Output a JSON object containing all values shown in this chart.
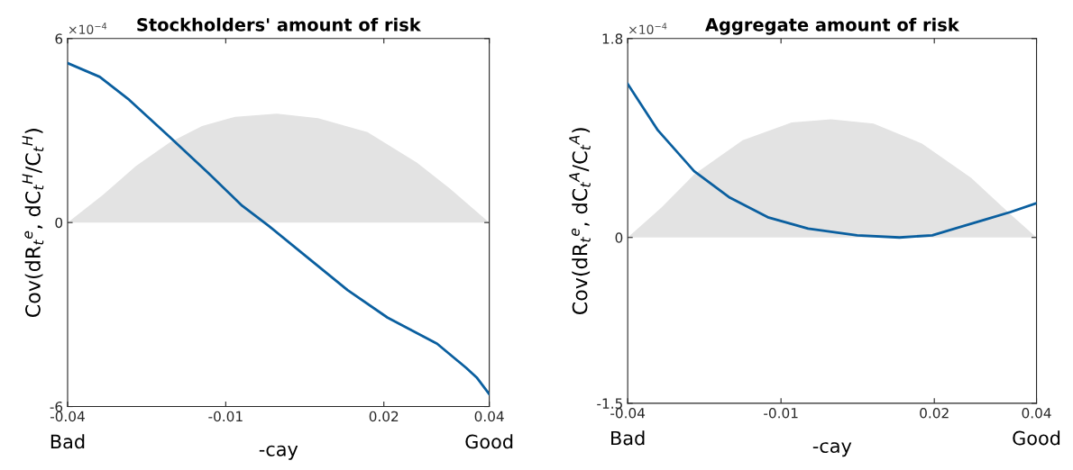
{
  "chart_data": [
    {
      "type": "line",
      "title": "Stockholders' amount of risk",
      "xlabel": "-cay",
      "ylabel": "Cov(dR$_{t}$$^{e}$, dC$_{t}$$^{H}$/C$_{t}$$^{H}$)",
      "xlim": [
        -0.04,
        0.04
      ],
      "xticks": [
        -0.04,
        -0.01,
        0.02,
        0.04
      ],
      "ylim": [
        -6,
        6
      ],
      "yticks": [
        -6,
        0,
        6
      ],
      "annotations": [
        "×10$^{−4}$",
        "Bad",
        "Good"
      ],
      "series": [
        {
          "type": "area",
          "color": "#e3e3e3",
          "x": [
            -0.04,
            -0.0333,
            -0.027,
            -0.0207,
            -0.0145,
            -0.0082,
            -0.0003,
            0.0075,
            0.0169,
            0.0263,
            0.0326,
            0.04
          ],
          "values": [
            0,
            0.9,
            1.85,
            2.6,
            3.15,
            3.45,
            3.55,
            3.4,
            2.95,
            1.95,
            1.1,
            0
          ]
        },
        {
          "color": "#0a5f9f",
          "x": [
            -0.04,
            -0.0339,
            -0.0283,
            -0.0207,
            -0.0132,
            -0.0069,
            -0.0019,
            0.0056,
            0.0131,
            0.0207,
            0.0301,
            0.0357,
            0.0376,
            0.04
          ],
          "values": [
            5.2,
            4.75,
            4.0,
            2.8,
            1.6,
            0.55,
            -0.1,
            -1.15,
            -2.2,
            -3.1,
            -3.95,
            -4.75,
            -5.05,
            -5.6
          ]
        }
      ]
    },
    {
      "type": "line",
      "title": "Aggregate amount of risk",
      "xlabel": "-cay",
      "ylabel": "Cov(dR$_{t}$$^{e}$, dC$_{t}$$^{A}$/C$_{t}$$^{A}$)",
      "xlim": [
        -0.04,
        0.04
      ],
      "xticks": [
        -0.04,
        -0.01,
        0.02,
        0.04
      ],
      "ylim": [
        -1.5,
        1.8
      ],
      "yticks": [
        -1.5,
        0,
        1.8
      ],
      "annotations": [
        "×10$^{−4}$",
        "Bad",
        "Good"
      ],
      "series": [
        {
          "type": "area",
          "color": "#e3e3e3",
          "x": [
            -0.04,
            -0.0334,
            -0.027,
            -0.0175,
            -0.0079,
            -0.0002,
            0.0081,
            0.0176,
            0.0272,
            0.0349,
            0.04
          ],
          "values": [
            0,
            0.27,
            0.57,
            0.88,
            1.04,
            1.07,
            1.03,
            0.85,
            0.54,
            0.21,
            0
          ]
        },
        {
          "color": "#0a5f9f",
          "x": [
            -0.04,
            -0.0341,
            -0.027,
            -0.02,
            -0.0124,
            -0.0047,
            0.0049,
            0.0132,
            0.0196,
            0.0298,
            0.0349,
            0.04
          ],
          "values": [
            1.39,
            0.97,
            0.6,
            0.36,
            0.18,
            0.08,
            0.02,
            0,
            0.02,
            0.16,
            0.23,
            0.31
          ]
        }
      ]
    }
  ]
}
